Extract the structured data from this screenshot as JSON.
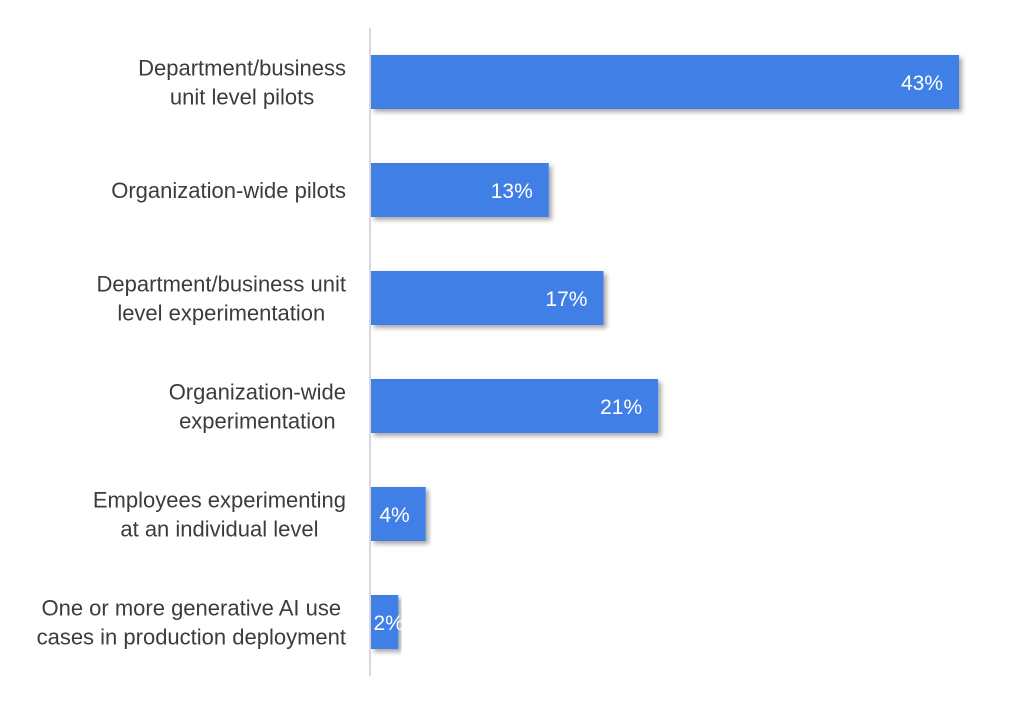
{
  "chart_data": {
    "type": "bar",
    "orientation": "horizontal",
    "categories": [
      [
        "Department/business",
        "unit level pilots"
      ],
      [
        "Organization-wide pilots"
      ],
      [
        "Department/business unit",
        "level experimentation"
      ],
      [
        "Organization-wide",
        "experimentation"
      ],
      [
        "Employees experimenting",
        "at an individual level"
      ],
      [
        "One or more generative AI use",
        "cases in production deployment"
      ]
    ],
    "values": [
      43,
      13,
      17,
      21,
      4,
      2
    ],
    "value_labels": [
      "43%",
      "13%",
      "17%",
      "21%",
      "4%",
      "2%"
    ],
    "unit": "%",
    "title": "",
    "xlabel": "",
    "ylabel": "",
    "xlim": [
      0,
      43
    ],
    "grid": false,
    "legend": "none",
    "colors": {
      "bar": "#3f80e6",
      "axis": "#d8d8d8",
      "label_text": "#3c3c3c",
      "value_text": "#ffffff"
    }
  }
}
